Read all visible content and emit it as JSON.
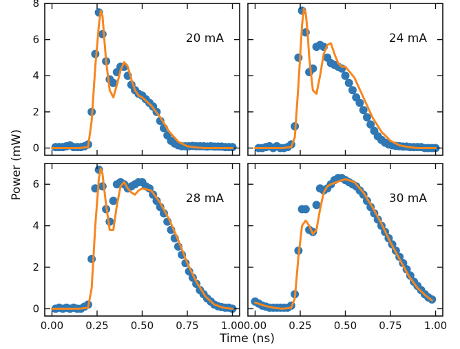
{
  "figure": {
    "xlabel": "Time (ns)",
    "ylabel": "Power (mW)"
  },
  "colors": {
    "measured": "#2f78b4",
    "fit": "#f7861e",
    "axis": "#111111"
  },
  "chart_data": [
    {
      "type": "scatter",
      "panel_label": "20 mA",
      "xlim": [
        -0.04,
        1.04
      ],
      "ylim": [
        -0.4,
        8.0
      ],
      "xticks": [
        "0.00",
        "0.25",
        "0.50",
        "0.75",
        "1.00"
      ],
      "yticks": [
        "0",
        "2",
        "4",
        "6",
        "8"
      ],
      "xtick_values": [
        0,
        0.25,
        0.5,
        0.75,
        1.0
      ],
      "ytick_values": [
        0,
        2,
        4,
        6,
        8
      ],
      "show_xticklabels": false,
      "show_yticklabels": true,
      "series": [
        {
          "kind": "markers",
          "x": [
            0.02,
            0.04,
            0.06,
            0.08,
            0.1,
            0.12,
            0.14,
            0.16,
            0.18,
            0.2,
            0.22,
            0.24,
            0.26,
            0.28,
            0.3,
            0.32,
            0.34,
            0.36,
            0.38,
            0.4,
            0.42,
            0.44,
            0.46,
            0.48,
            0.5,
            0.52,
            0.54,
            0.56,
            0.58,
            0.6,
            0.62,
            0.64,
            0.66,
            0.68,
            0.7,
            0.72,
            0.74,
            0.76,
            0.78,
            0.8,
            0.82,
            0.84,
            0.86,
            0.88,
            0.9,
            0.92,
            0.94,
            0.96,
            0.98,
            1.0
          ],
          "y": [
            0.05,
            0.05,
            0.05,
            0.1,
            0.15,
            0.05,
            0.05,
            0.05,
            0.1,
            0.2,
            2.0,
            5.2,
            7.5,
            6.3,
            4.8,
            3.8,
            3.6,
            4.2,
            4.5,
            4.5,
            4.0,
            3.5,
            3.2,
            3.0,
            2.9,
            2.7,
            2.5,
            2.3,
            2.0,
            1.5,
            1.1,
            0.7,
            0.4,
            0.25,
            0.15,
            0.1,
            0.1,
            0.1,
            0.12,
            0.1,
            0.1,
            0.1,
            0.08,
            0.1,
            0.08,
            0.08,
            0.08,
            0.05,
            0.05,
            0.05
          ]
        },
        {
          "kind": "line",
          "x": [
            0.0,
            0.05,
            0.1,
            0.15,
            0.2,
            0.22,
            0.24,
            0.26,
            0.27,
            0.28,
            0.3,
            0.32,
            0.34,
            0.36,
            0.38,
            0.4,
            0.42,
            0.44,
            0.46,
            0.48,
            0.5,
            0.55,
            0.6,
            0.65,
            0.7,
            0.75,
            0.8,
            0.85,
            0.9,
            0.95,
            1.0
          ],
          "y": [
            0.0,
            0.0,
            0.0,
            0.0,
            0.05,
            1.5,
            4.5,
            6.8,
            7.6,
            7.3,
            4.8,
            3.2,
            2.8,
            3.5,
            4.3,
            4.75,
            4.5,
            3.8,
            3.2,
            2.9,
            2.8,
            2.35,
            1.7,
            0.9,
            0.35,
            0.1,
            0.03,
            0.0,
            0.0,
            0.0,
            0.0
          ]
        }
      ]
    },
    {
      "type": "scatter",
      "panel_label": "24 mA",
      "xlim": [
        -0.04,
        1.04
      ],
      "ylim": [
        -0.4,
        8.0
      ],
      "xticks": [
        "0.00",
        "0.25",
        "0.50",
        "0.75",
        "1.00"
      ],
      "yticks": [
        "0",
        "2",
        "4",
        "6",
        "8"
      ],
      "xtick_values": [
        0,
        0.25,
        0.5,
        0.75,
        1.0
      ],
      "ytick_values": [
        0,
        2,
        4,
        6,
        8
      ],
      "show_xticklabels": false,
      "show_yticklabels": false,
      "series": [
        {
          "kind": "markers",
          "x": [
            0.02,
            0.04,
            0.06,
            0.08,
            0.1,
            0.12,
            0.14,
            0.16,
            0.18,
            0.2,
            0.22,
            0.24,
            0.26,
            0.28,
            0.3,
            0.32,
            0.34,
            0.36,
            0.38,
            0.4,
            0.42,
            0.44,
            0.46,
            0.48,
            0.5,
            0.52,
            0.54,
            0.56,
            0.58,
            0.6,
            0.62,
            0.64,
            0.66,
            0.68,
            0.7,
            0.72,
            0.74,
            0.76,
            0.78,
            0.8,
            0.82,
            0.84,
            0.86,
            0.88,
            0.9,
            0.92,
            0.94,
            0.96,
            0.98,
            1.0
          ],
          "y": [
            0.0,
            0.0,
            0.05,
            0.1,
            0.0,
            0.1,
            0.0,
            0.0,
            0.05,
            0.2,
            1.2,
            5.0,
            7.6,
            6.4,
            4.2,
            4.4,
            5.6,
            5.7,
            5.6,
            5.0,
            4.7,
            4.6,
            4.5,
            4.4,
            4.0,
            3.6,
            3.2,
            2.8,
            2.5,
            2.1,
            1.7,
            1.3,
            0.95,
            0.65,
            0.45,
            0.3,
            0.2,
            0.15,
            0.12,
            0.1,
            0.08,
            0.08,
            0.05,
            0.05,
            0.05,
            0.05,
            0.0,
            0.0,
            0.0,
            0.0
          ]
        },
        {
          "kind": "line",
          "x": [
            0.0,
            0.05,
            0.1,
            0.15,
            0.2,
            0.22,
            0.24,
            0.26,
            0.27,
            0.28,
            0.29,
            0.3,
            0.32,
            0.34,
            0.36,
            0.38,
            0.4,
            0.42,
            0.44,
            0.46,
            0.48,
            0.5,
            0.55,
            0.6,
            0.65,
            0.7,
            0.75,
            0.8,
            0.85,
            0.9,
            0.95,
            1.0
          ],
          "y": [
            0.0,
            0.0,
            0.0,
            0.0,
            0.05,
            0.6,
            3.5,
            6.8,
            7.7,
            7.5,
            6.5,
            5.0,
            3.2,
            3.0,
            4.0,
            5.2,
            5.7,
            5.8,
            5.2,
            4.7,
            4.5,
            4.5,
            3.9,
            2.8,
            1.7,
            0.9,
            0.4,
            0.15,
            0.05,
            0.0,
            0.0,
            0.0
          ]
        }
      ]
    },
    {
      "type": "scatter",
      "panel_label": "28 mA",
      "xlim": [
        -0.04,
        1.04
      ],
      "ylim": [
        -0.35,
        7.0
      ],
      "xticks": [
        "0.00",
        "0.25",
        "0.50",
        "0.75",
        "1.00"
      ],
      "yticks": [
        "0",
        "2",
        "4",
        "6"
      ],
      "xtick_values": [
        0,
        0.25,
        0.5,
        0.75,
        1.0
      ],
      "ytick_values": [
        0,
        2,
        4,
        6
      ],
      "show_xticklabels": true,
      "show_yticklabels": true,
      "series": [
        {
          "kind": "markers",
          "x": [
            0.02,
            0.04,
            0.06,
            0.08,
            0.1,
            0.12,
            0.14,
            0.16,
            0.18,
            0.2,
            0.22,
            0.24,
            0.26,
            0.28,
            0.3,
            0.32,
            0.34,
            0.36,
            0.38,
            0.4,
            0.42,
            0.44,
            0.46,
            0.48,
            0.5,
            0.52,
            0.54,
            0.56,
            0.58,
            0.6,
            0.62,
            0.64,
            0.66,
            0.68,
            0.7,
            0.72,
            0.74,
            0.76,
            0.78,
            0.8,
            0.82,
            0.84,
            0.86,
            0.88,
            0.9,
            0.92,
            0.94,
            0.96,
            0.98,
            1.0
          ],
          "y": [
            0.0,
            0.05,
            0.0,
            0.05,
            0.0,
            0.05,
            0.0,
            0.0,
            0.1,
            0.2,
            2.4,
            5.8,
            6.7,
            5.9,
            4.8,
            4.2,
            5.2,
            6.0,
            6.1,
            6.0,
            5.8,
            5.9,
            6.0,
            6.1,
            6.1,
            5.9,
            5.8,
            5.5,
            5.2,
            4.9,
            4.6,
            4.2,
            3.8,
            3.4,
            3.0,
            2.6,
            2.2,
            1.8,
            1.5,
            1.2,
            0.9,
            0.7,
            0.5,
            0.35,
            0.2,
            0.12,
            0.08,
            0.05,
            0.05,
            0.0
          ]
        },
        {
          "kind": "line",
          "x": [
            0.0,
            0.05,
            0.1,
            0.15,
            0.2,
            0.22,
            0.24,
            0.26,
            0.27,
            0.28,
            0.3,
            0.32,
            0.34,
            0.36,
            0.38,
            0.4,
            0.42,
            0.44,
            0.46,
            0.48,
            0.5,
            0.55,
            0.6,
            0.65,
            0.7,
            0.75,
            0.8,
            0.85,
            0.9,
            0.95,
            1.0
          ],
          "y": [
            0.0,
            0.0,
            0.0,
            0.0,
            0.05,
            1.0,
            4.0,
            6.3,
            6.75,
            6.5,
            5.0,
            3.8,
            3.8,
            5.0,
            5.9,
            6.1,
            5.8,
            5.6,
            5.5,
            5.7,
            5.8,
            5.7,
            5.1,
            4.3,
            3.3,
            2.2,
            1.3,
            0.6,
            0.2,
            0.05,
            0.0
          ]
        }
      ]
    },
    {
      "type": "scatter",
      "panel_label": "30 mA",
      "xlim": [
        -0.04,
        1.04
      ],
      "ylim": [
        -0.35,
        7.0
      ],
      "xticks": [
        "0.00",
        "0.25",
        "0.50",
        "0.75",
        "1.00"
      ],
      "yticks": [
        "0",
        "2",
        "4",
        "6"
      ],
      "xtick_values": [
        0,
        0.25,
        0.5,
        0.75,
        1.0
      ],
      "ytick_values": [
        0,
        2,
        4,
        6
      ],
      "show_xticklabels": true,
      "show_yticklabels": false,
      "series": [
        {
          "kind": "markers",
          "x": [
            0.0,
            0.02,
            0.04,
            0.06,
            0.08,
            0.1,
            0.12,
            0.14,
            0.16,
            0.18,
            0.2,
            0.22,
            0.24,
            0.26,
            0.28,
            0.3,
            0.32,
            0.34,
            0.36,
            0.38,
            0.4,
            0.42,
            0.44,
            0.46,
            0.48,
            0.5,
            0.52,
            0.54,
            0.56,
            0.58,
            0.6,
            0.62,
            0.64,
            0.66,
            0.68,
            0.7,
            0.72,
            0.74,
            0.76,
            0.78,
            0.8,
            0.82,
            0.84,
            0.86,
            0.88,
            0.9,
            0.92,
            0.94,
            0.96,
            0.98
          ],
          "y": [
            0.35,
            0.25,
            0.15,
            0.1,
            0.05,
            0.05,
            0.05,
            0.05,
            0.05,
            0.05,
            0.15,
            0.7,
            2.8,
            4.8,
            4.8,
            3.8,
            3.7,
            5.0,
            5.8,
            5.7,
            5.8,
            6.0,
            6.2,
            6.3,
            6.3,
            6.2,
            6.1,
            6.0,
            5.9,
            5.7,
            5.5,
            5.2,
            4.9,
            4.6,
            4.3,
            4.0,
            3.7,
            3.4,
            3.1,
            2.8,
            2.5,
            2.2,
            1.9,
            1.6,
            1.3,
            1.1,
            0.9,
            0.7,
            0.55,
            0.45
          ]
        },
        {
          "kind": "line",
          "x": [
            0.0,
            0.05,
            0.1,
            0.15,
            0.2,
            0.22,
            0.24,
            0.26,
            0.28,
            0.3,
            0.32,
            0.34,
            0.36,
            0.38,
            0.4,
            0.42,
            0.45,
            0.5,
            0.55,
            0.6,
            0.65,
            0.7,
            0.75,
            0.8,
            0.85,
            0.9,
            0.95,
            0.98
          ],
          "y": [
            0.3,
            0.15,
            0.05,
            0.0,
            0.05,
            0.5,
            2.5,
            4.0,
            4.25,
            4.0,
            3.6,
            3.8,
            4.8,
            5.6,
            5.9,
            6.0,
            6.1,
            6.25,
            6.1,
            5.6,
            4.9,
            4.1,
            3.2,
            2.4,
            1.6,
            1.0,
            0.6,
            0.4
          ]
        }
      ]
    }
  ]
}
